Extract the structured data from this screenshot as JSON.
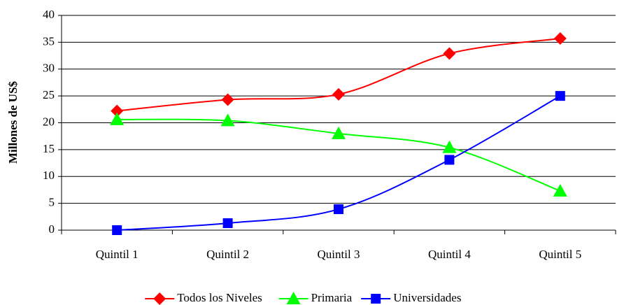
{
  "chart_data": {
    "type": "line",
    "y_label": "Millones de US$",
    "categories": [
      "Quintil 1",
      "Quintil 2",
      "Quintil 3",
      "Quintil 4",
      "Quintil 5"
    ],
    "series": [
      {
        "name": "Todos los Niveles",
        "color": "#ff0000",
        "marker": "diamond",
        "values": [
          22.2,
          24.3,
          25.3,
          32.9,
          35.7
        ]
      },
      {
        "name": "Primaria",
        "color": "#00ff00",
        "marker": "triangle",
        "values": [
          20.6,
          20.4,
          18.0,
          15.4,
          7.3
        ]
      },
      {
        "name": "Universidades",
        "color": "#0000ff",
        "marker": "square",
        "values": [
          0,
          1.3,
          3.9,
          13.1,
          25.0
        ]
      }
    ],
    "ylim": [
      0,
      40
    ],
    "yticks": [
      0,
      5,
      10,
      15,
      20,
      25,
      30,
      35,
      40
    ],
    "grid": true,
    "smooth": true,
    "legend": "bottom"
  }
}
